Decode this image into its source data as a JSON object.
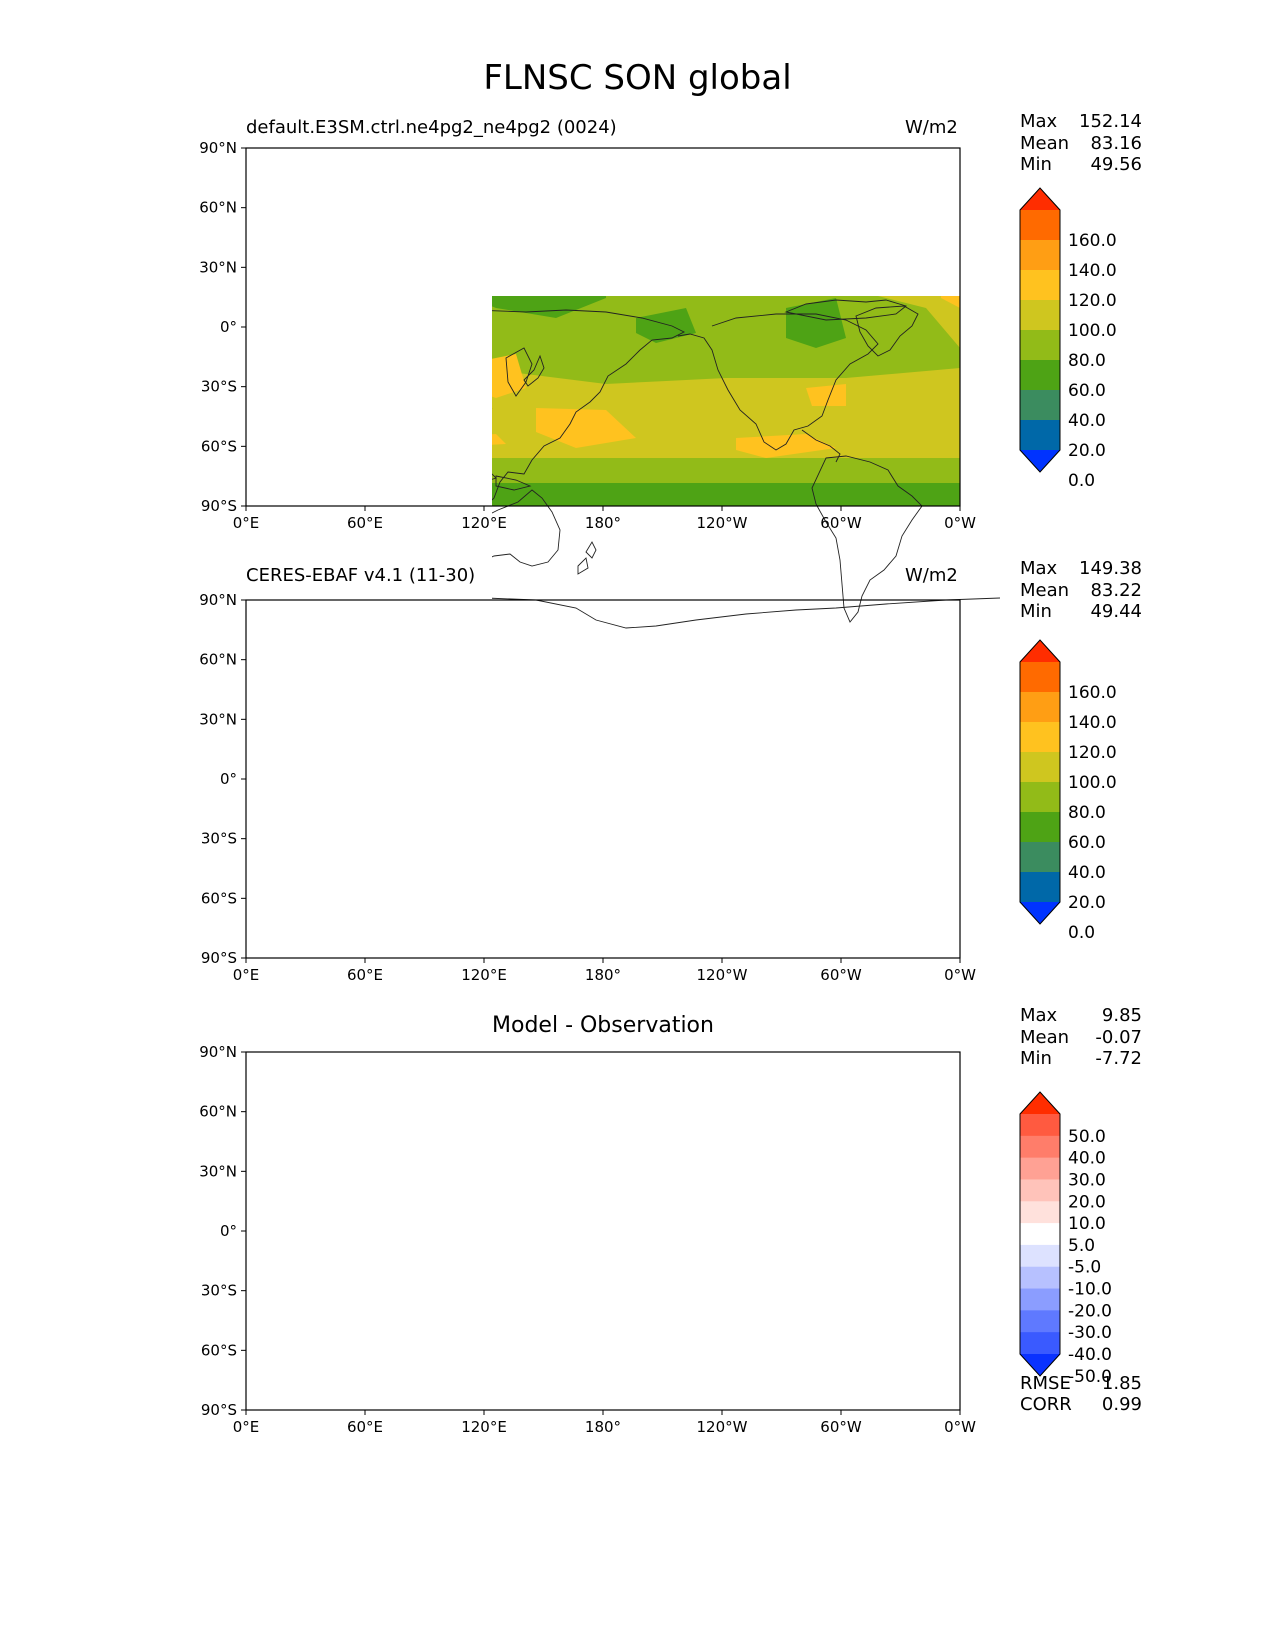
{
  "title": "FLNSC SON global",
  "axes": {
    "lat_ticks": [
      "90°N",
      "60°N",
      "30°N",
      "0°",
      "30°S",
      "60°S",
      "90°S"
    ],
    "lon_ticks": [
      "0°E",
      "60°E",
      "120°E",
      "180°",
      "120°W",
      "60°W",
      "0°W"
    ]
  },
  "panels": [
    {
      "left_title": "default.E3SM.ctrl.ne4pg2_ne4pg2 (0024)",
      "center_title": "",
      "units": "W/m2",
      "stats": {
        "max_label": "Max",
        "max": "152.14",
        "mean_label": "Mean",
        "mean": "83.16",
        "min_label": "Min",
        "min": "49.56"
      },
      "colorbar": {
        "labels": [
          "160.0",
          "140.0",
          "120.0",
          "100.0",
          "80.0",
          "60.0",
          "40.0",
          "20.0",
          "0.0"
        ],
        "colors": [
          "#ff2d00",
          "#ff6a00",
          "#ff9e14",
          "#ffc21f",
          "#cfc61f",
          "#92bb18",
          "#4ea315",
          "#3b8c5f",
          "#0068a8",
          "#0033ff"
        ]
      }
    },
    {
      "left_title": "CERES-EBAF v4.1 (11-30)",
      "center_title": "",
      "units": "W/m2",
      "stats": {
        "max_label": "Max",
        "max": "149.38",
        "mean_label": "Mean",
        "mean": "83.22",
        "min_label": "Min",
        "min": "49.44"
      },
      "colorbar": {
        "labels": [
          "160.0",
          "140.0",
          "120.0",
          "100.0",
          "80.0",
          "60.0",
          "40.0",
          "20.0",
          "0.0"
        ],
        "colors": [
          "#ff2d00",
          "#ff6a00",
          "#ff9e14",
          "#ffc21f",
          "#cfc61f",
          "#92bb18",
          "#4ea315",
          "#3b8c5f",
          "#0068a8",
          "#0033ff"
        ]
      }
    },
    {
      "left_title": "",
      "center_title": "Model - Observation",
      "units": "",
      "stats": {
        "max_label": "Max",
        "max": "9.85",
        "mean_label": "Mean",
        "mean": "-0.07",
        "min_label": "Min",
        "min": "-7.72"
      },
      "colorbar": {
        "labels": [
          "50.0",
          "40.0",
          "30.0",
          "20.0",
          "10.0",
          "5.0",
          "-5.0",
          "-10.0",
          "-20.0",
          "-30.0",
          "-40.0",
          "-50.0"
        ],
        "colors": [
          "#ff2d00",
          "#ff5a40",
          "#ff7d6a",
          "#ffa194",
          "#ffc3ba",
          "#ffe1dc",
          "#ffffff",
          "#dde2ff",
          "#b7c1ff",
          "#8b9dff",
          "#5f79ff",
          "#3a5aff",
          "#0a32ff"
        ]
      },
      "metrics": {
        "rmse_label": "RMSE",
        "rmse": "1.85",
        "corr_label": "CORR",
        "corr": "0.99"
      }
    }
  ]
}
